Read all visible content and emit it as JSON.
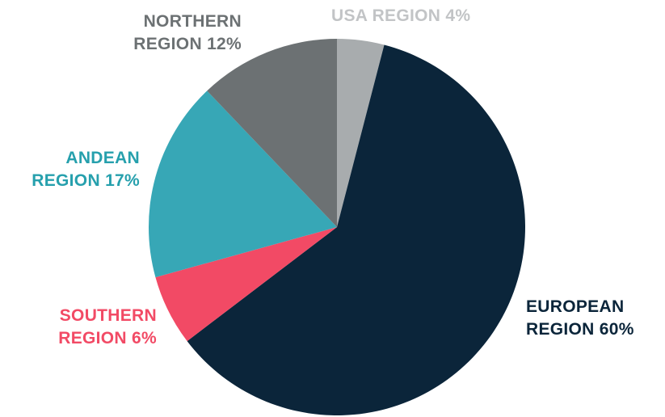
{
  "chart_data": {
    "type": "pie",
    "categories": [
      "USA REGION",
      "EUROPEAN REGION",
      "SOUTHERN REGION",
      "ANDEAN REGION",
      "NORTHERN REGION"
    ],
    "values": [
      4,
      60,
      6,
      17,
      12
    ],
    "value_labels": [
      "4%",
      "60%",
      "6%",
      "17%",
      "12%"
    ],
    "colors": [
      "#a8acae",
      "#0b253a",
      "#f24a65",
      "#37a7b6",
      "#6c7173"
    ],
    "label_colors": [
      "#c2c4c6",
      "#0b253a",
      "#f24a65",
      "#26a0ad",
      "#6c7173"
    ]
  }
}
